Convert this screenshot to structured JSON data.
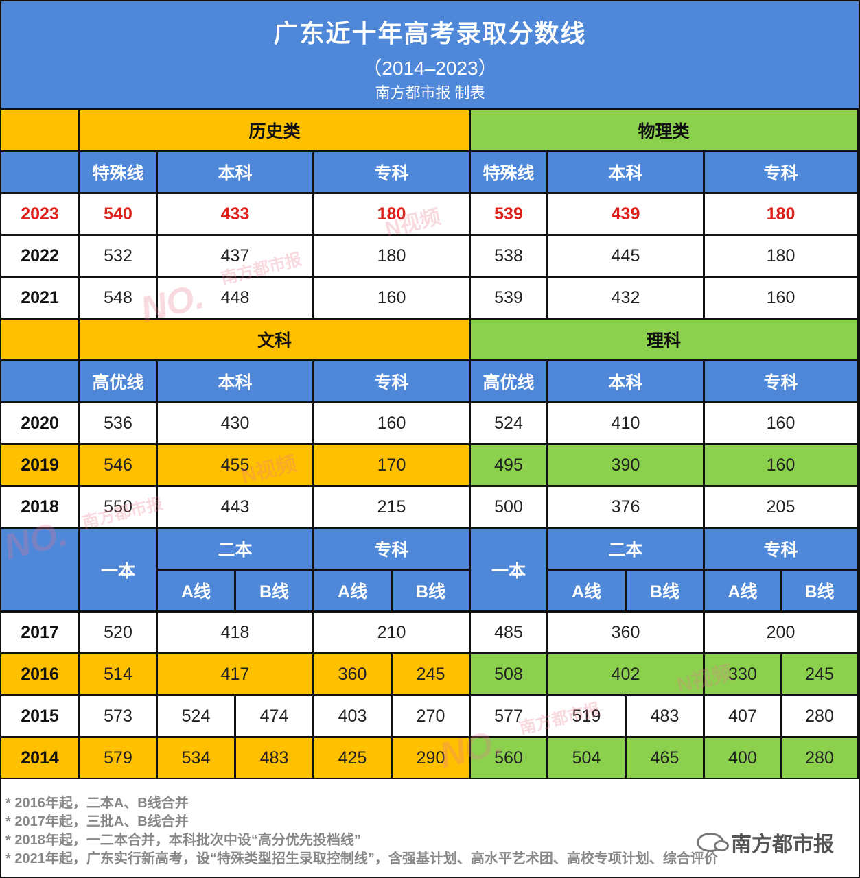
{
  "header": {
    "title": "广东近十年高考录取分数线",
    "subtitle": "（2014–2023）",
    "credit": "南方都市报 制表"
  },
  "section1": {
    "left_group": "历史类",
    "right_group": "物理类",
    "sub_headers": [
      "特殊线",
      "本科",
      "专科",
      "特殊线",
      "本科",
      "专科"
    ],
    "rows": [
      {
        "year": "2023",
        "values": [
          "540",
          "433",
          "180",
          "539",
          "439",
          "180"
        ]
      },
      {
        "year": "2022",
        "values": [
          "532",
          "437",
          "180",
          "538",
          "445",
          "180"
        ]
      },
      {
        "year": "2021",
        "values": [
          "548",
          "448",
          "160",
          "539",
          "432",
          "160"
        ]
      }
    ]
  },
  "section2": {
    "left_group": "文科",
    "right_group": "理科",
    "sub_headers": [
      "高优线",
      "本科",
      "专科",
      "高优线",
      "本科",
      "专科"
    ],
    "rows": [
      {
        "year": "2020",
        "values": [
          "536",
          "430",
          "160",
          "524",
          "410",
          "160"
        ]
      },
      {
        "year": "2019",
        "values": [
          "546",
          "455",
          "170",
          "495",
          "390",
          "160"
        ]
      },
      {
        "year": "2018",
        "values": [
          "550",
          "443",
          "215",
          "500",
          "376",
          "205"
        ]
      }
    ]
  },
  "section3": {
    "headers": {
      "yiben": "一本",
      "erben": "二本",
      "zhuanke": "专科",
      "a": "A线",
      "b": "B线"
    },
    "rows": [
      {
        "year": "2017",
        "values": [
          "520",
          "418",
          "210",
          "485",
          "360",
          "200"
        ]
      },
      {
        "year": "2016",
        "values": [
          "514",
          "417",
          "360",
          "245",
          "508",
          "402",
          "330",
          "245"
        ]
      },
      {
        "year": "2015",
        "values": [
          "573",
          "524",
          "474",
          "403",
          "270",
          "577",
          "519",
          "483",
          "407",
          "280"
        ]
      },
      {
        "year": "2014",
        "values": [
          "579",
          "534",
          "483",
          "425",
          "290",
          "560",
          "504",
          "465",
          "400",
          "280"
        ]
      }
    ]
  },
  "notes": [
    "* 2016年起，二本A、B线合并",
    "* 2017年起，三批A、B线合并",
    "* 2018年起，一二本合并，本科批次中设“高分优先投档线”",
    "* 2021年起，广东实行新高考，设“特殊类型招生录取控制线”，含强基计划、高水平艺术团、高校专项计划、综合评价"
  ],
  "brand": "南方都市报",
  "watermarks": [
    "N视频",
    "南方都市报",
    "NO."
  ],
  "colors": {
    "blue": "#4f88d8",
    "yellow": "#ffc000",
    "green": "#8bd14e",
    "red": "#e0201a"
  }
}
